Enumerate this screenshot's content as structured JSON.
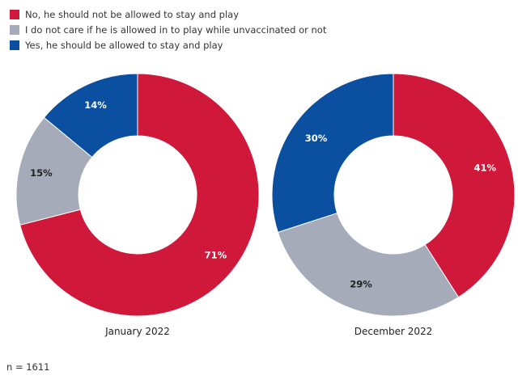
{
  "chart_data": [
    {
      "type": "pie",
      "subtype": "donut",
      "title": "January 2022",
      "categories": [
        "No, he should not be allowed to stay and play",
        "I do not care if he is allowed in to play while unvaccinated or not",
        "Yes, he should be allowed to stay and play"
      ],
      "values": [
        71,
        15,
        14
      ],
      "data_labels": [
        "71%",
        "15%",
        "14%"
      ],
      "colors": [
        "#d0193a",
        "#a5abb8",
        "#0b4fa1"
      ],
      "label_colors": [
        "#ffffff",
        "#222222",
        "#ffffff"
      ]
    },
    {
      "type": "pie",
      "subtype": "donut",
      "title": "December 2022",
      "categories": [
        "No, he should not be allowed to stay and play",
        "I do not care if he is allowed in to play while unvaccinated or not",
        "Yes, he should be allowed to stay and play"
      ],
      "values": [
        41,
        29,
        30
      ],
      "data_labels": [
        "41%",
        "29%",
        "30%"
      ],
      "colors": [
        "#d0193a",
        "#a5abb8",
        "#0b4fa1"
      ],
      "label_colors": [
        "#ffffff",
        "#222222",
        "#ffffff"
      ]
    }
  ],
  "legend": {
    "placement": "top-left",
    "items": [
      {
        "label": "No, he should not be allowed to stay and play",
        "color": "#d0193a"
      },
      {
        "label": "I do not care if he is allowed in to play while unvaccinated or not",
        "color": "#a5abb8"
      },
      {
        "label": "Yes, he should be allowed to stay and play",
        "color": "#0b4fa1"
      }
    ]
  },
  "footnote": "n = 1611"
}
